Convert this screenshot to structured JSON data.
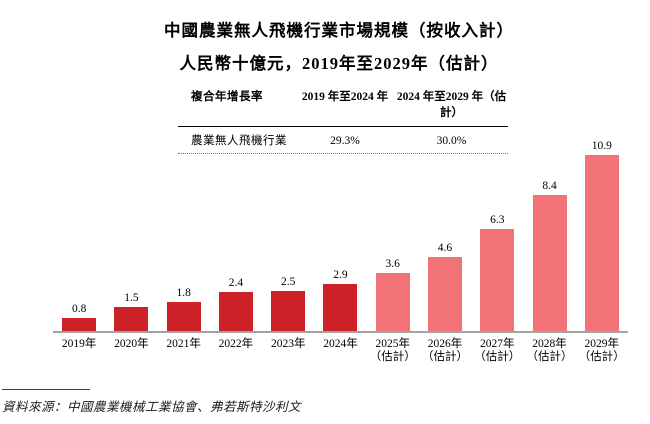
{
  "title": {
    "line1": "中國農業無人飛機行業市場規模（按收入計）",
    "line2": "人民幣十億元，2019年至2029年（估計）"
  },
  "cagr_table": {
    "headers": [
      "複合年增長率",
      "2019 年至2024 年",
      "2024 年至2029 年（估計）"
    ],
    "rows": [
      {
        "label": "農業無人飛機行業",
        "values": [
          "29.3%",
          "30.0%"
        ]
      }
    ]
  },
  "chart_data": {
    "type": "bar",
    "title": "中國農業無人飛機行業市場規模（按收入計）",
    "subtitle": "人民幣十億元，2019年至2029年（估計）",
    "categories": [
      "2019年",
      "2020年",
      "2021年",
      "2022年",
      "2023年",
      "2024年",
      "2025年（估計）",
      "2026年（估計）",
      "2027年（估計）",
      "2028年（估計）",
      "2029年（估計）"
    ],
    "values": [
      0.8,
      1.5,
      1.8,
      2.4,
      2.5,
      2.9,
      3.6,
      4.6,
      6.3,
      8.4,
      10.9
    ],
    "estimate_start_index": 6,
    "estimate_note": "（估計）",
    "data_labels": true,
    "grid": false,
    "legend": "none",
    "ylim": [
      0,
      11.5
    ],
    "xlabel": "",
    "ylabel": "人民幣十億元"
  },
  "colors": {
    "bar_actual": "#CC2127",
    "bar_estimate": "#F17378",
    "axis_line": "#A3A3A3"
  },
  "source": "資料來源：中國農業機械工業協會、弗若斯特沙利文"
}
